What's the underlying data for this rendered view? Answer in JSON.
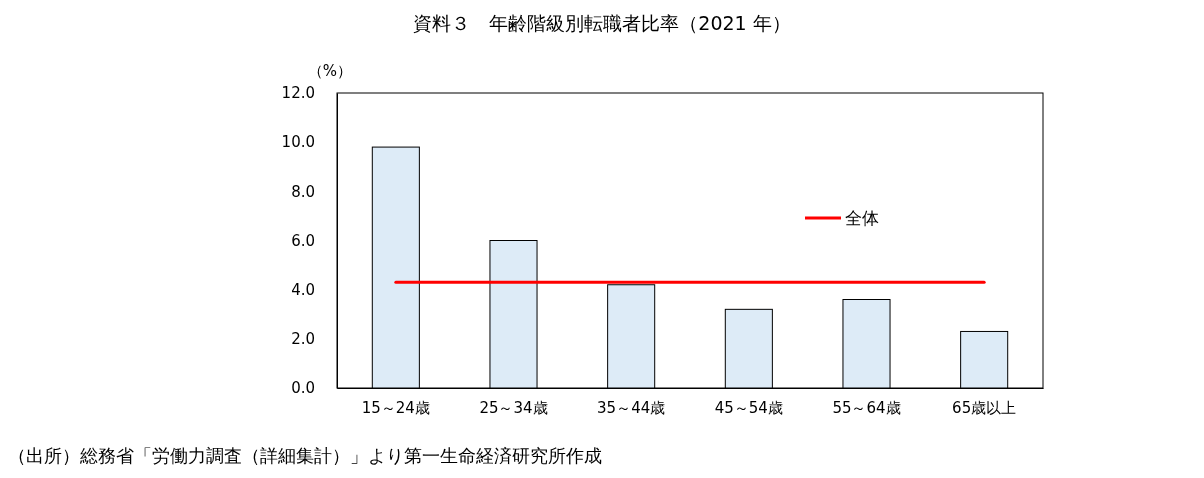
{
  "chart_data": {
    "type": "bar",
    "title": "資料３　年齢階級別転職者比率（2021 年）",
    "ylabel": "（%）",
    "categories": [
      "15～24歳",
      "25～34歳",
      "35～44歳",
      "45～54歳",
      "55～64歳",
      "65歳以上"
    ],
    "series": [
      {
        "color": "#ddebf7",
        "values": [
          9.8,
          6.0,
          4.2,
          3.2,
          3.6,
          2.3
        ]
      },
      {
        "type": "line",
        "name": "全体",
        "color": "#ff0000",
        "values": [
          4.3,
          4.3,
          4.3,
          4.3,
          4.3,
          4.3
        ]
      }
    ],
    "ylim": [
      0,
      12
    ],
    "yticks": [
      {
        "value": 0,
        "label": "0.0"
      },
      {
        "value": 2,
        "label": "2.0"
      },
      {
        "value": 4,
        "label": "4.0"
      },
      {
        "value": 6,
        "label": "6.0"
      },
      {
        "value": 8,
        "label": "8.0"
      },
      {
        "value": 10,
        "label": "10.0"
      },
      {
        "value": 12,
        "label": "12.0"
      }
    ],
    "legend": "right",
    "marker": "none",
    "annotations": [
      "（出所）総務省「労働力調査（詳細集計）」より第一生命経済研究所作成"
    ]
  }
}
